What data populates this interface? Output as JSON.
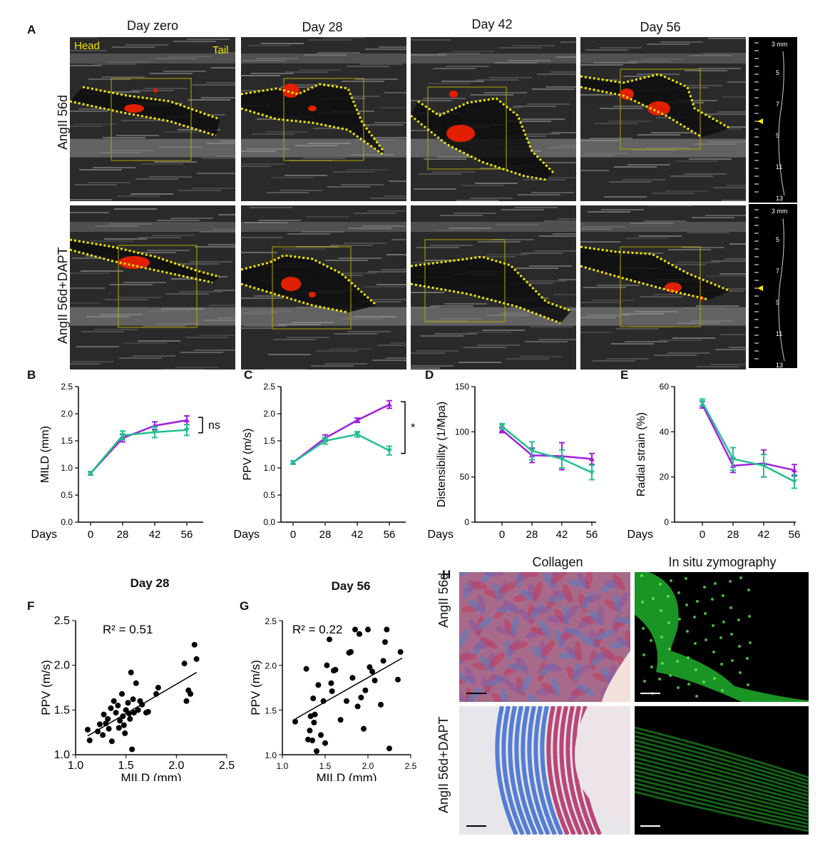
{
  "panel_letters": {
    "A": "A",
    "B": "B",
    "C": "C",
    "D": "D",
    "E": "E",
    "F": "F",
    "G": "G",
    "H": "H"
  },
  "ultrasound": {
    "columns": [
      "Day zero",
      "Day 28",
      "Day 42",
      "Day 56"
    ],
    "rows": [
      "AngII 56d",
      "AngII 56d+DAPT"
    ],
    "orientation": {
      "head": "Head",
      "tail": "Tail"
    },
    "depth_scale": {
      "top_label": "3 mm",
      "ticks": [
        "5",
        "7",
        "9",
        "11",
        "13"
      ]
    },
    "colors": {
      "outline": "#f2e600",
      "flow": "#e02000",
      "box": "#b5a800"
    }
  },
  "series_colors": {
    "AngII": "#a020e0",
    "AngII+DAPT": "#20c090"
  },
  "chart_data": [
    {
      "id": "B",
      "type": "line",
      "xlabel": "Days",
      "ylabel": "MILD (mm)",
      "x": [
        0,
        28,
        42,
        56
      ],
      "xticks": [
        "0",
        "28",
        "42",
        "56"
      ],
      "ylim": [
        0,
        2.5
      ],
      "yticks": [
        "0.0",
        "0.5",
        "1.0",
        "1.5",
        "2.0",
        "2.5"
      ],
      "series": [
        {
          "values": [
            0.9,
            1.55,
            1.78,
            1.88
          ],
          "err": [
            0.03,
            0.07,
            0.07,
            0.08
          ],
          "color": "#a020e0"
        },
        {
          "values": [
            0.9,
            1.6,
            1.66,
            1.7
          ],
          "err": [
            0.03,
            0.08,
            0.1,
            0.1
          ],
          "color": "#20c090"
        }
      ],
      "annotation": "ns"
    },
    {
      "id": "C",
      "type": "line",
      "xlabel": "Days",
      "ylabel": "PPV (m/s)",
      "x": [
        0,
        28,
        42,
        56
      ],
      "xticks": [
        "0",
        "28",
        "42",
        "56"
      ],
      "ylim": [
        0,
        2.5
      ],
      "yticks": [
        "0.0",
        "0.5",
        "1.0",
        "1.5",
        "2.0",
        "2.5"
      ],
      "series": [
        {
          "values": [
            1.1,
            1.55,
            1.88,
            2.17
          ],
          "err": [
            0.03,
            0.06,
            0.04,
            0.07
          ],
          "color": "#a020e0"
        },
        {
          "values": [
            1.1,
            1.5,
            1.62,
            1.32
          ],
          "err": [
            0.03,
            0.06,
            0.05,
            0.08
          ],
          "color": "#20c090"
        }
      ],
      "annotation": "*"
    },
    {
      "id": "D",
      "type": "line",
      "xlabel": "Days",
      "ylabel": "Distensibility (1/Mpa)",
      "x": [
        0,
        28,
        42,
        56
      ],
      "xticks": [
        "0",
        "28",
        "42",
        "56"
      ],
      "ylim": [
        0,
        150
      ],
      "yticks": [
        "0",
        "50",
        "100",
        "150"
      ],
      "series": [
        {
          "values": [
            102,
            74,
            73,
            70
          ],
          "err": [
            3,
            8,
            15,
            6
          ],
          "color": "#a020e0"
        },
        {
          "values": [
            106,
            79,
            70,
            55
          ],
          "err": [
            3,
            10,
            10,
            8
          ],
          "color": "#20c090"
        }
      ]
    },
    {
      "id": "E",
      "type": "line",
      "xlabel": "Days",
      "ylabel": "Radial strain (%)",
      "x": [
        0,
        28,
        42,
        56
      ],
      "xticks": [
        "0",
        "28",
        "42",
        "56"
      ],
      "ylim": [
        0,
        60
      ],
      "yticks": [
        "0",
        "20",
        "40",
        "60"
      ],
      "series": [
        {
          "values": [
            52,
            25,
            26,
            23
          ],
          "err": [
            1.5,
            3,
            6,
            2.5
          ],
          "color": "#a020e0"
        },
        {
          "values": [
            53,
            28,
            25,
            18
          ],
          "err": [
            1.5,
            5,
            5,
            3
          ],
          "color": "#20c090"
        }
      ]
    },
    {
      "id": "F",
      "type": "scatter",
      "title": "Day 28",
      "xlabel": "MILD (mm)",
      "ylabel": "PPV (m/s)",
      "annotation": "R² = 0.51",
      "xlim": [
        1.0,
        2.5
      ],
      "ylim": [
        1.0,
        2.5
      ],
      "xticks": [
        "1.0",
        "1.5",
        "2.0",
        "2.5"
      ],
      "yticks": [
        "1.0",
        "1.5",
        "2.0",
        "2.5"
      ],
      "points": [
        [
          1.12,
          1.28
        ],
        [
          1.14,
          1.16
        ],
        [
          1.22,
          1.26
        ],
        [
          1.24,
          1.34
        ],
        [
          1.27,
          1.22
        ],
        [
          1.28,
          1.45
        ],
        [
          1.3,
          1.35
        ],
        [
          1.32,
          1.4
        ],
        [
          1.33,
          1.29
        ],
        [
          1.35,
          1.52
        ],
        [
          1.36,
          1.15
        ],
        [
          1.38,
          1.6
        ],
        [
          1.4,
          1.47
        ],
        [
          1.42,
          1.55
        ],
        [
          1.43,
          1.3
        ],
        [
          1.44,
          1.38
        ],
        [
          1.46,
          1.68
        ],
        [
          1.47,
          1.43
        ],
        [
          1.48,
          1.33
        ],
        [
          1.49,
          1.24
        ],
        [
          1.5,
          1.5
        ],
        [
          1.52,
          1.58
        ],
        [
          1.53,
          1.46
        ],
        [
          1.54,
          1.4
        ],
        [
          1.55,
          1.92
        ],
        [
          1.56,
          1.06
        ],
        [
          1.57,
          1.62
        ],
        [
          1.58,
          1.47
        ],
        [
          1.6,
          1.8
        ],
        [
          1.62,
          1.5
        ],
        [
          1.64,
          1.6
        ],
        [
          1.66,
          1.56
        ],
        [
          1.7,
          1.47
        ],
        [
          1.72,
          1.48
        ],
        [
          1.8,
          1.68
        ],
        [
          1.82,
          1.75
        ],
        [
          2.08,
          2.02
        ],
        [
          2.1,
          1.6
        ],
        [
          2.12,
          1.72
        ],
        [
          2.14,
          1.68
        ],
        [
          2.18,
          2.23
        ],
        [
          2.2,
          2.07
        ]
      ],
      "fit": [
        [
          1.12,
          1.21
        ],
        [
          2.2,
          1.92
        ]
      ]
    },
    {
      "id": "G",
      "type": "scatter",
      "title": "Day 56",
      "xlabel": "MILD (mm)",
      "ylabel": "PPV (m/s)",
      "annotation": "R² = 0.22",
      "xlim": [
        1.0,
        2.5
      ],
      "ylim": [
        1.0,
        2.5
      ],
      "xticks": [
        "1.0",
        "1.5",
        "2.0",
        "2.5"
      ],
      "yticks": [
        "1.0",
        "1.5",
        "2.0",
        "2.5"
      ],
      "points": [
        [
          1.15,
          1.37
        ],
        [
          1.28,
          1.96
        ],
        [
          1.3,
          1.17
        ],
        [
          1.32,
          1.27
        ],
        [
          1.33,
          1.43
        ],
        [
          1.35,
          1.16
        ],
        [
          1.36,
          1.63
        ],
        [
          1.37,
          1.36
        ],
        [
          1.38,
          1.45
        ],
        [
          1.4,
          1.04
        ],
        [
          1.42,
          1.78
        ],
        [
          1.45,
          1.22
        ],
        [
          1.48,
          1.6
        ],
        [
          1.5,
          1.13
        ],
        [
          1.52,
          2.0
        ],
        [
          1.55,
          2.29
        ],
        [
          1.57,
          1.8
        ],
        [
          1.58,
          1.71
        ],
        [
          1.6,
          1.94
        ],
        [
          1.62,
          1.95
        ],
        [
          1.68,
          1.39
        ],
        [
          1.75,
          1.6
        ],
        [
          1.78,
          2.14
        ],
        [
          1.8,
          2.15
        ],
        [
          1.82,
          1.86
        ],
        [
          1.85,
          2.4
        ],
        [
          1.88,
          1.54
        ],
        [
          1.9,
          2.35
        ],
        [
          1.92,
          1.64
        ],
        [
          1.95,
          1.29
        ],
        [
          1.97,
          1.72
        ],
        [
          2.0,
          2.4
        ],
        [
          2.02,
          1.98
        ],
        [
          2.05,
          1.93
        ],
        [
          2.08,
          1.83
        ],
        [
          2.15,
          1.56
        ],
        [
          2.18,
          2.05
        ],
        [
          2.2,
          2.26
        ],
        [
          2.22,
          2.4
        ],
        [
          2.25,
          1.07
        ],
        [
          2.35,
          1.84
        ],
        [
          2.38,
          2.15
        ]
      ],
      "fit": [
        [
          1.15,
          1.4
        ],
        [
          2.4,
          2.08
        ]
      ]
    }
  ],
  "histology": {
    "columns": [
      "Collagen",
      "In situ zymography"
    ],
    "rows": [
      "AngII 56d",
      "AngII 56d+DAPT"
    ]
  }
}
